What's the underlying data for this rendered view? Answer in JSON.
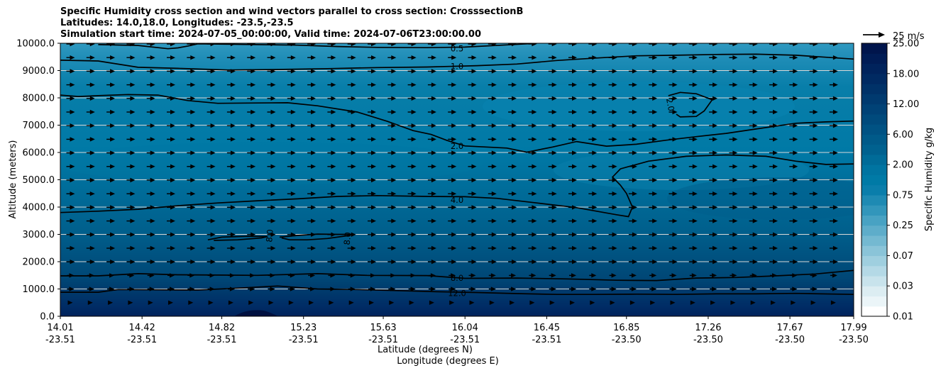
{
  "chart_data": {
    "type": "contourf",
    "title": [
      "Specific Humidity cross section and wind vectors parallel to cross section: CrosssectionB",
      "Latitudes: 14.0,18.0, Longitudes: -23.5,-23.5",
      "Simulation start time: 2024-07-05_00:00:00, Valid time: 2024-07-06T23:00:00.00"
    ],
    "ylabel": "Altitude (meters)",
    "xlabel_lat": "Latitude (degrees N)",
    "xlabel_lon": "Longitude (degrees E)",
    "ylim": [
      0,
      10000
    ],
    "yticks": [
      "0.0",
      "1000.0",
      "2000.0",
      "3000.0",
      "4000.0",
      "5000.0",
      "6000.0",
      "7000.0",
      "8000.0",
      "9000.0",
      "10000.0"
    ],
    "xticks_lat": [
      "14.01",
      "14.42",
      "14.82",
      "15.23",
      "15.63",
      "16.04",
      "16.45",
      "16.85",
      "17.26",
      "17.67",
      "17.99"
    ],
    "xticks_lon": [
      "-23.51",
      "-23.51",
      "-23.51",
      "-23.51",
      "-23.51",
      "-23.51",
      "-23.51",
      "-23.50",
      "-23.50",
      "-23.50",
      "-23.50"
    ],
    "colorbar": {
      "label": "Specific Humidity g/kg",
      "tick_labels": [
        "0.01",
        "0.03",
        "0.07",
        "0.25",
        "0.75",
        "2.00",
        "6.00",
        "12.00",
        "18.00",
        "25.00"
      ],
      "colors": [
        "#ffffff",
        "#ebf5f8",
        "#dcedf2",
        "#c8e3ec",
        "#b4d9e6",
        "#9fcfdf",
        "#8ac4d8",
        "#74b9d1",
        "#5eadca",
        "#48a2c3",
        "#3296bb",
        "#1e8ab3",
        "#0a7eab",
        "#007aa6",
        "#0074a1",
        "#006b98",
        "#00618f",
        "#005a89",
        "#005283",
        "#004a7c",
        "#004276",
        "#003a6f",
        "#003268",
        "#002a62",
        "#00235c",
        "#001c55",
        "#00154c"
      ]
    },
    "quiver_key": {
      "label": "25 m/s",
      "value": 25
    },
    "contour_labels": [
      {
        "text": "0.5",
        "x_lat": 16.0,
        "alt": 9800
      },
      {
        "text": "1.0",
        "x_lat": 16.0,
        "alt": 9150
      },
      {
        "text": "2.0",
        "x_lat": 16.0,
        "alt": 6240
      },
      {
        "text": "2.0",
        "x_lat": 17.07,
        "alt": 7750,
        "rotate": 80
      },
      {
        "text": "4.0",
        "x_lat": 16.0,
        "alt": 4260
      },
      {
        "text": "8.0",
        "x_lat": 15.06,
        "alt": 2950,
        "rotate": -85
      },
      {
        "text": "8.0",
        "x_lat": 15.45,
        "alt": 2850,
        "rotate": -85
      },
      {
        "text": "8.0",
        "x_lat": 16.0,
        "alt": 1400
      },
      {
        "text": "12.0",
        "x_lat": 16.0,
        "alt": 850
      }
    ],
    "contour_lines": [
      {
        "level": 0.5,
        "points": [
          [
            14.2,
            9950
          ],
          [
            14.4,
            9920
          ],
          [
            14.55,
            9800
          ],
          [
            14.6,
            9830
          ],
          [
            14.65,
            9900
          ],
          [
            14.7,
            9980
          ],
          [
            14.9,
            9960
          ],
          [
            15.2,
            9930
          ],
          [
            15.4,
            9880
          ],
          [
            15.6,
            9850
          ],
          [
            15.85,
            9840
          ],
          [
            16.04,
            9860
          ],
          [
            16.25,
            9940
          ],
          [
            16.4,
            10000
          ]
        ]
      },
      {
        "level": 1.0,
        "points": [
          [
            14.01,
            9380
          ],
          [
            14.2,
            9350
          ],
          [
            14.4,
            9120
          ],
          [
            14.6,
            9080
          ],
          [
            14.85,
            9020
          ],
          [
            15.1,
            9040
          ],
          [
            15.35,
            9070
          ],
          [
            15.6,
            9110
          ],
          [
            15.85,
            9130
          ],
          [
            16.1,
            9180
          ],
          [
            16.3,
            9240
          ],
          [
            16.5,
            9370
          ],
          [
            16.7,
            9460
          ],
          [
            16.9,
            9540
          ],
          [
            17.1,
            9560
          ],
          [
            17.3,
            9590
          ],
          [
            17.5,
            9600
          ],
          [
            17.7,
            9560
          ],
          [
            17.99,
            9420
          ]
        ]
      },
      {
        "level": 2.0,
        "points": [
          [
            14.01,
            8100
          ],
          [
            14.1,
            8050
          ],
          [
            14.2,
            8080
          ],
          [
            14.35,
            8120
          ],
          [
            14.5,
            8100
          ],
          [
            14.65,
            7900
          ],
          [
            14.8,
            7800
          ],
          [
            14.95,
            7810
          ],
          [
            15.15,
            7820
          ],
          [
            15.3,
            7710
          ],
          [
            15.5,
            7480
          ],
          [
            15.65,
            7140
          ],
          [
            15.78,
            6800
          ],
          [
            15.87,
            6660
          ],
          [
            15.95,
            6440
          ],
          [
            16.04,
            6240
          ],
          [
            16.25,
            6160
          ],
          [
            16.35,
            6010
          ],
          [
            16.48,
            6200
          ],
          [
            16.6,
            6400
          ],
          [
            16.75,
            6230
          ],
          [
            16.9,
            6300
          ],
          [
            17.05,
            6450
          ],
          [
            17.2,
            6580
          ],
          [
            17.35,
            6700
          ],
          [
            17.5,
            6860
          ],
          [
            17.7,
            7070
          ],
          [
            17.85,
            7120
          ],
          [
            17.99,
            7150
          ]
        ]
      },
      {
        "level": 2.0,
        "points": [
          [
            17.1,
            7400
          ],
          [
            17.12,
            7300
          ],
          [
            17.2,
            7320
          ],
          [
            17.24,
            7520
          ],
          [
            17.28,
            7930
          ],
          [
            17.2,
            8150
          ],
          [
            17.12,
            8200
          ],
          [
            17.06,
            8080
          ]
        ]
      },
      {
        "level": 4.0,
        "points": [
          [
            14.01,
            3800
          ],
          [
            14.2,
            3850
          ],
          [
            14.4,
            3920
          ],
          [
            14.6,
            4050
          ],
          [
            14.8,
            4150
          ],
          [
            15.0,
            4230
          ],
          [
            15.2,
            4300
          ],
          [
            15.4,
            4390
          ],
          [
            15.6,
            4420
          ],
          [
            15.85,
            4390
          ],
          [
            16.04,
            4380
          ],
          [
            16.2,
            4320
          ],
          [
            16.4,
            4150
          ],
          [
            16.6,
            3980
          ],
          [
            16.8,
            3720
          ],
          [
            16.86,
            3650
          ],
          [
            16.88,
            4000
          ],
          [
            16.85,
            4500
          ],
          [
            16.82,
            4800
          ],
          [
            16.78,
            5100
          ],
          [
            16.82,
            5400
          ],
          [
            16.96,
            5680
          ],
          [
            17.15,
            5860
          ],
          [
            17.35,
            5910
          ],
          [
            17.55,
            5860
          ],
          [
            17.7,
            5680
          ],
          [
            17.85,
            5560
          ],
          [
            17.99,
            5580
          ]
        ]
      },
      {
        "level": 8.0,
        "points": [
          [
            14.75,
            2800
          ],
          [
            14.82,
            2900
          ],
          [
            14.95,
            2930
          ],
          [
            15.05,
            2920
          ],
          [
            15.02,
            2870
          ],
          [
            14.9,
            2800
          ],
          [
            14.78,
            2780
          ]
        ]
      },
      {
        "level": 8.0,
        "points": [
          [
            15.11,
            2900
          ],
          [
            15.2,
            2960
          ],
          [
            15.3,
            3010
          ],
          [
            15.4,
            3000
          ],
          [
            15.47,
            3000
          ],
          [
            15.46,
            2960
          ],
          [
            15.35,
            2850
          ],
          [
            15.25,
            2800
          ],
          [
            15.16,
            2800
          ],
          [
            15.12,
            2870
          ]
        ]
      },
      {
        "level": 8.0,
        "points": [
          [
            14.01,
            1480
          ],
          [
            14.2,
            1480
          ],
          [
            14.4,
            1560
          ],
          [
            14.6,
            1520
          ],
          [
            14.8,
            1510
          ],
          [
            15.0,
            1500
          ],
          [
            15.3,
            1560
          ],
          [
            15.55,
            1500
          ],
          [
            15.85,
            1490
          ],
          [
            16.04,
            1390
          ],
          [
            16.3,
            1400
          ],
          [
            16.55,
            1370
          ],
          [
            16.8,
            1320
          ],
          [
            17.0,
            1310
          ],
          [
            17.2,
            1400
          ],
          [
            17.4,
            1420
          ],
          [
            17.6,
            1480
          ],
          [
            17.8,
            1550
          ],
          [
            17.99,
            1680
          ]
        ]
      },
      {
        "level": 12.0,
        "points": [
          [
            14.01,
            880
          ],
          [
            14.1,
            880
          ],
          [
            14.2,
            880
          ],
          [
            14.3,
            980
          ],
          [
            14.5,
            970
          ],
          [
            14.7,
            960
          ],
          [
            14.9,
            1030
          ],
          [
            15.1,
            1110
          ],
          [
            15.3,
            1000
          ],
          [
            15.5,
            980
          ],
          [
            15.7,
            940
          ],
          [
            15.9,
            900
          ],
          [
            16.1,
            870
          ],
          [
            16.3,
            830
          ],
          [
            16.5,
            800
          ],
          [
            16.7,
            800
          ],
          [
            16.9,
            810
          ],
          [
            17.1,
            800
          ],
          [
            17.3,
            820
          ],
          [
            17.5,
            820
          ],
          [
            17.7,
            840
          ],
          [
            17.99,
            800
          ]
        ]
      }
    ],
    "wind": {
      "u_ms": "~8-12 (parallel to section)",
      "w_ms": "~0"
    }
  }
}
